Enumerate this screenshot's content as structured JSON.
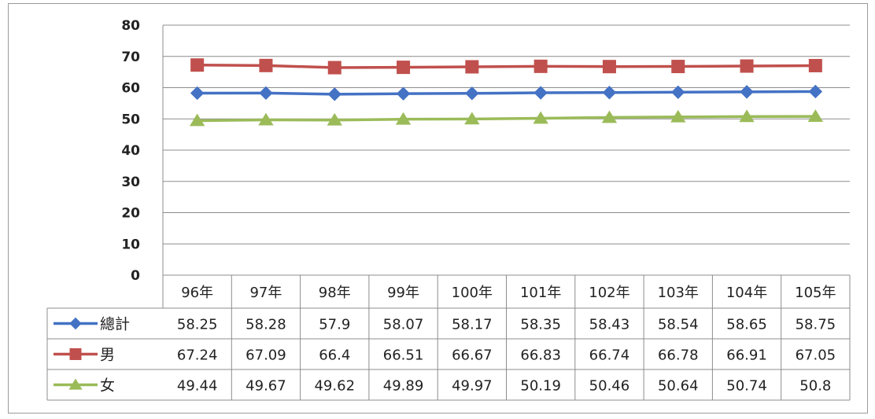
{
  "chart_data": {
    "type": "line",
    "categories": [
      "96年",
      "97年",
      "98年",
      "99年",
      "100年",
      "101年",
      "102年",
      "103年",
      "104年",
      "105年"
    ],
    "ylim": [
      0,
      80
    ],
    "yticks": [
      0,
      10,
      20,
      30,
      40,
      50,
      60,
      70,
      80
    ],
    "grid": true,
    "legend": "data-table",
    "series": [
      {
        "name": "總計",
        "color": "#4472c4",
        "marker": "diamond",
        "values": [
          58.25,
          58.28,
          57.9,
          58.07,
          58.17,
          58.35,
          58.43,
          58.54,
          58.65,
          58.75
        ],
        "labels": [
          "58.25",
          "58.28",
          "57.9",
          "58.07",
          "58.17",
          "58.35",
          "58.43",
          "58.54",
          "58.65",
          "58.75"
        ]
      },
      {
        "name": "男",
        "color": "#c0504d",
        "marker": "square",
        "values": [
          67.24,
          67.09,
          66.4,
          66.51,
          66.67,
          66.83,
          66.74,
          66.78,
          66.91,
          67.05
        ],
        "labels": [
          "67.24",
          "67.09",
          "66.4",
          "66.51",
          "66.67",
          "66.83",
          "66.74",
          "66.78",
          "66.91",
          "67.05"
        ]
      },
      {
        "name": "女",
        "color": "#9bbb59",
        "marker": "triangle",
        "values": [
          49.44,
          49.67,
          49.62,
          49.89,
          49.97,
          50.19,
          50.46,
          50.64,
          50.74,
          50.8
        ],
        "labels": [
          "49.44",
          "49.67",
          "49.62",
          "49.89",
          "49.97",
          "50.19",
          "50.46",
          "50.64",
          "50.74",
          "50.8"
        ]
      }
    ]
  }
}
